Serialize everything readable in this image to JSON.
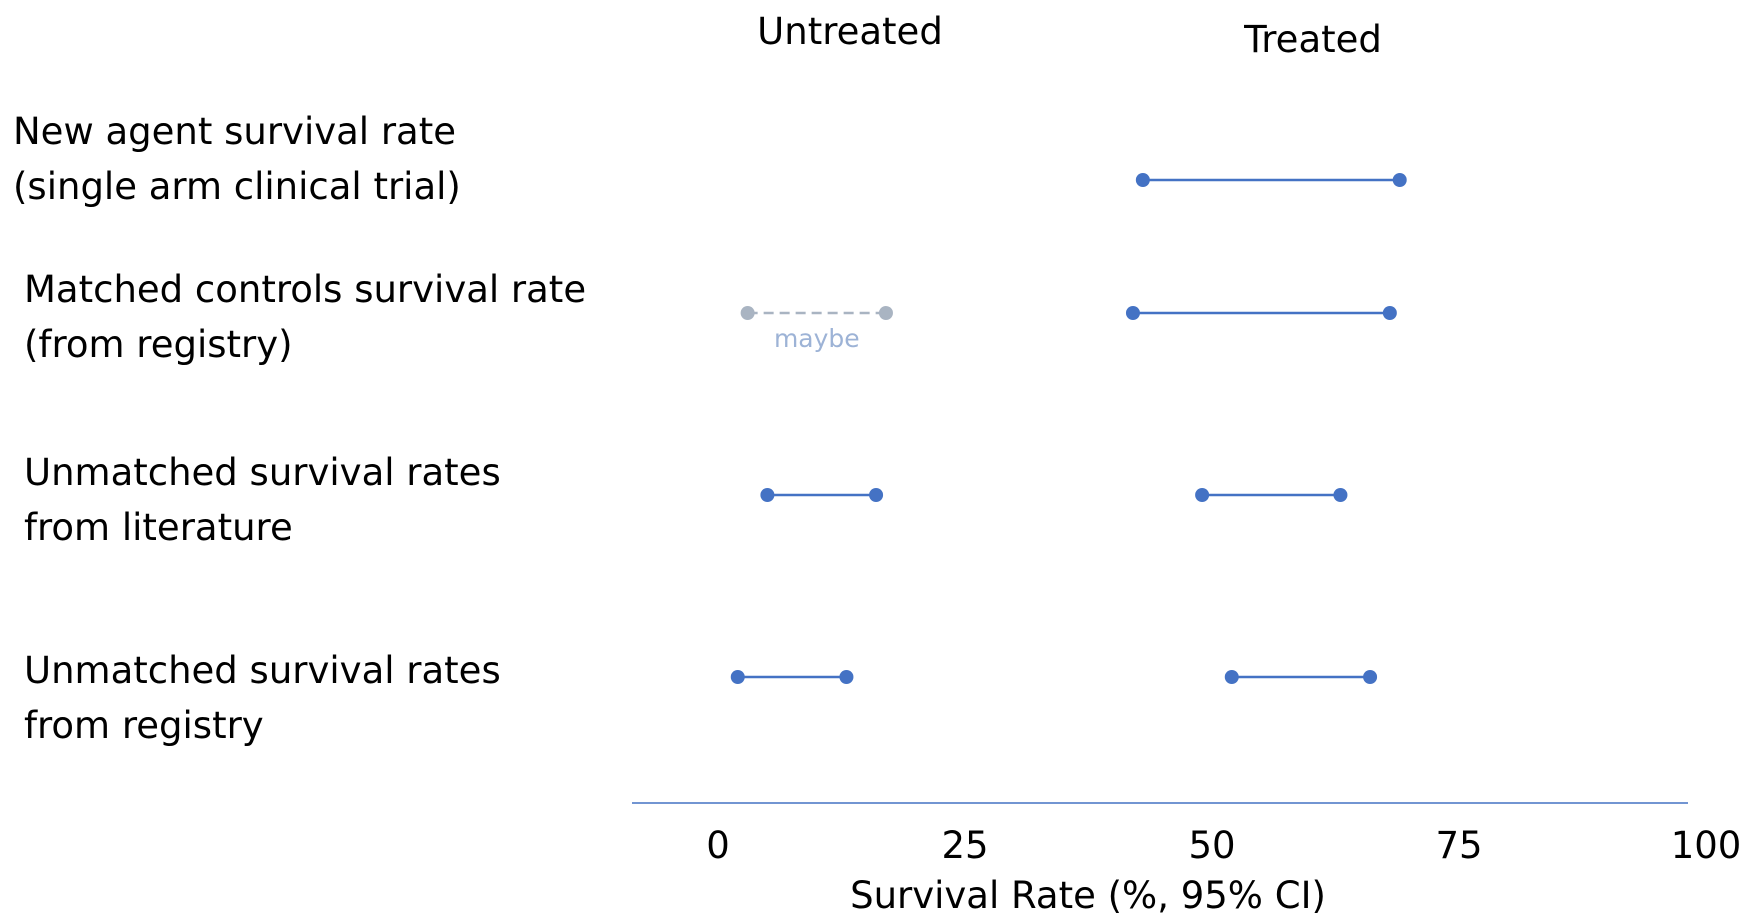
{
  "chart_data": {
    "type": "interval",
    "columns": [
      "Untreated",
      "Treated"
    ],
    "rows": [
      {
        "label_lines": [
          "New agent survival rate",
          "(single arm clinical trial)"
        ],
        "intervals": [
          {
            "group": "Treated",
            "low": 43,
            "high": 69,
            "style": "solid"
          }
        ]
      },
      {
        "label_lines": [
          "Matched controls survival rate",
          "(from registry)"
        ],
        "intervals": [
          {
            "group": "Untreated",
            "low": 3,
            "high": 17,
            "style": "dashed",
            "annotation": "maybe"
          },
          {
            "group": "Treated",
            "low": 42,
            "high": 68,
            "style": "solid"
          }
        ]
      },
      {
        "label_lines": [
          "Unmatched survival rates",
          "from literature"
        ],
        "intervals": [
          {
            "group": "Untreated",
            "low": 5,
            "high": 16,
            "style": "solid"
          },
          {
            "group": "Treated",
            "low": 49,
            "high": 63,
            "style": "solid"
          }
        ]
      },
      {
        "label_lines": [
          "Unmatched survival rates",
          "from registry"
        ],
        "intervals": [
          {
            "group": "Untreated",
            "low": 2,
            "high": 13,
            "style": "solid"
          },
          {
            "group": "Treated",
            "low": 52,
            "high": 66,
            "style": "solid"
          }
        ]
      }
    ],
    "x_ticks": [
      "0",
      "25",
      "50",
      "75",
      "100"
    ],
    "x_tick_values": [
      0,
      25,
      50,
      75,
      100
    ],
    "xlabel": "Survival Rate (%, 95% CI)",
    "xlim": [
      0,
      100
    ],
    "grid": false,
    "colors": {
      "solid": "#4472C4",
      "dashed": "#A9B4C2",
      "annotation": "#9DB3D6",
      "axis": "#4472C4"
    }
  }
}
